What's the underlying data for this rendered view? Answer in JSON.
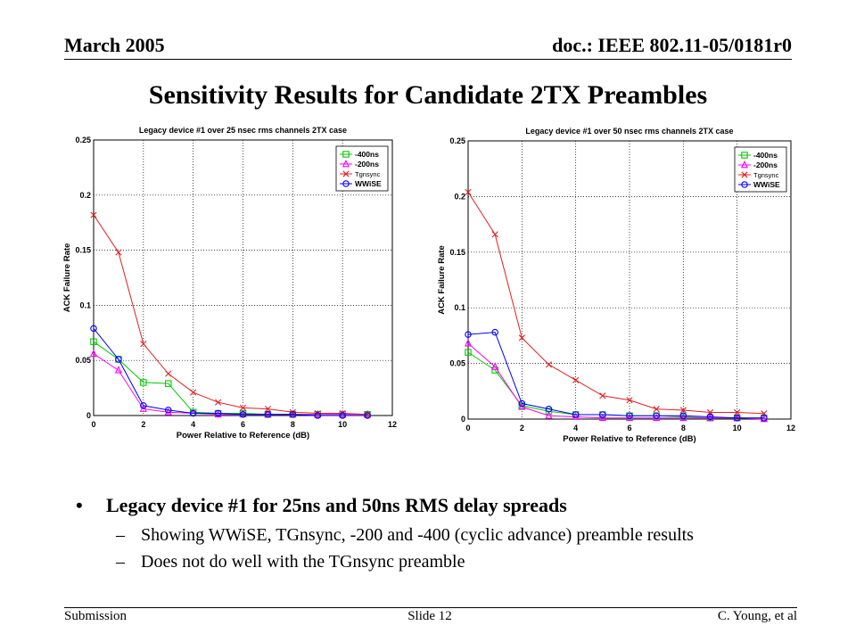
{
  "header": {
    "date": "March 2005",
    "doc_id": "doc.: IEEE 802.11-05/0181r0"
  },
  "title": "Sensitivity Results for Candidate 2TX Preambles",
  "colors": {
    "minus400": "#00cc00",
    "minus200": "#ff00ff",
    "tgnsync": "#e02020",
    "wwise": "#0000ff"
  },
  "chart_data": [
    {
      "type": "line",
      "title": "Legacy device #1 over 25 nsec rms channels 2TX case",
      "xlabel": "Power Relative to Reference (dB)",
      "ylabel": "ACK Failure Rate",
      "xlim": [
        0,
        12
      ],
      "ylim": [
        0,
        0.25
      ],
      "xticks": [
        "0",
        "2",
        "4",
        "6",
        "8",
        "10",
        "12"
      ],
      "yticks": [
        "0",
        "0.05",
        "0.1",
        "0.15",
        "0.2",
        "0.25"
      ],
      "grid": true,
      "legend": "top-right",
      "x": [
        0,
        1,
        2,
        3,
        4,
        5,
        6,
        7,
        8,
        9,
        10,
        11
      ],
      "series": [
        {
          "name": "-400ns",
          "values": [
            0.067,
            0.051,
            0.03,
            0.029,
            0.003,
            0.002,
            0.002,
            0.001,
            0.001,
            0.001,
            0.001,
            0.001
          ]
        },
        {
          "name": "-200ns",
          "values": [
            0.056,
            0.041,
            0.006,
            0.003,
            0.002,
            0.001,
            0.001,
            0.001,
            0.001,
            0.001,
            0.001,
            0.001
          ]
        },
        {
          "name": "Tgnsync",
          "values": [
            0.182,
            0.148,
            0.065,
            0.038,
            0.021,
            0.012,
            0.007,
            0.006,
            0.003,
            0.002,
            0.002,
            0.001
          ]
        },
        {
          "name": "WWiSE",
          "values": [
            0.079,
            0.051,
            0.009,
            0.005,
            0.002,
            0.002,
            0.001,
            0.001,
            0.001,
            0.0,
            0.0,
            0.0
          ]
        }
      ]
    },
    {
      "type": "line",
      "title": "Legacy device #1 over 50 nsec rms channels 2TX case",
      "xlabel": "Power Relative to Reference (dB)",
      "ylabel": "ACK Failure Rate",
      "xlim": [
        0,
        12
      ],
      "ylim": [
        0,
        0.25
      ],
      "xticks": [
        "0",
        "2",
        "4",
        "6",
        "8",
        "10",
        "12"
      ],
      "yticks": [
        "0",
        "0.05",
        "0.1",
        "0.15",
        "0.2",
        "0.25"
      ],
      "grid": true,
      "legend": "top-right",
      "x": [
        0,
        1,
        2,
        3,
        4,
        5,
        6,
        7,
        8,
        9,
        10,
        11
      ],
      "series": [
        {
          "name": "-400ns",
          "values": [
            0.06,
            0.044,
            0.012,
            0.007,
            0.004,
            0.004,
            0.003,
            0.003,
            0.002,
            0.001,
            0.001,
            0.001
          ]
        },
        {
          "name": "-200ns",
          "values": [
            0.068,
            0.047,
            0.011,
            0.003,
            0.002,
            0.001,
            0.001,
            0.001,
            0.001,
            0.001,
            0.001,
            0.0
          ]
        },
        {
          "name": "Tgnsync",
          "values": [
            0.204,
            0.166,
            0.073,
            0.049,
            0.035,
            0.021,
            0.017,
            0.009,
            0.008,
            0.006,
            0.006,
            0.005
          ]
        },
        {
          "name": "WWiSE",
          "values": [
            0.076,
            0.078,
            0.014,
            0.009,
            0.004,
            0.004,
            0.003,
            0.003,
            0.003,
            0.002,
            0.001,
            0.001
          ]
        }
      ]
    }
  ],
  "bullets": {
    "main": "Legacy device #1 for 25ns and 50ns RMS delay spreads",
    "bullet_symbol": "•",
    "dash_symbol": "–",
    "sub": [
      "Showing WWiSE, TGnsync, -200 and -400 (cyclic advance) preamble results",
      "Does not do well with the TGnsync preamble"
    ]
  },
  "footer": {
    "left": "Submission",
    "center": "Slide 12",
    "right": "C. Young, et al"
  }
}
